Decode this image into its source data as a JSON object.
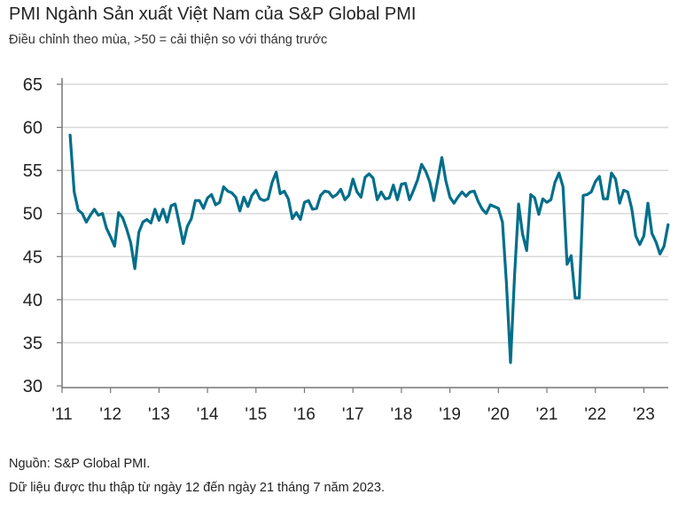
{
  "chart_data": {
    "type": "line",
    "title": "PMI Ngành Sản xuất Việt Nam của S&P Global PMI",
    "subtitle": "Điều chỉnh theo mùa, >50 = cải thiện so với tháng trước",
    "xlabel": "",
    "ylabel": "",
    "ylim": [
      30,
      65
    ],
    "yticks": [
      "65",
      "60",
      "55",
      "50",
      "45",
      "40",
      "35",
      "30"
    ],
    "xticks": [
      "'11",
      "'12",
      "'13",
      "'14",
      "'15",
      "'16",
      "'17",
      "'18",
      "'19",
      "'20",
      "'21",
      "'22",
      "'23"
    ],
    "x_start": "2011-03",
    "x_end": "2023-07",
    "frequency": "monthly",
    "grid": true,
    "line_color": "#006e8a",
    "values": [
      59.1,
      52.5,
      50.4,
      50.0,
      49.0,
      49.8,
      50.5,
      49.8,
      50.0,
      48.3,
      47.3,
      46.2,
      50.1,
      49.5,
      48.2,
      46.6,
      43.6,
      47.8,
      49.0,
      49.3,
      48.9,
      50.5,
      49.2,
      50.5,
      49.0,
      50.9,
      51.1,
      48.9,
      46.5,
      48.5,
      49.4,
      51.5,
      51.5,
      50.6,
      51.8,
      52.2,
      51.0,
      51.3,
      53.1,
      52.6,
      52.4,
      51.9,
      50.3,
      51.9,
      50.8,
      52.1,
      52.7,
      51.7,
      51.5,
      51.7,
      53.6,
      54.8,
      52.3,
      52.6,
      51.7,
      49.4,
      50.1,
      49.3,
      51.3,
      51.5,
      50.5,
      50.6,
      52.1,
      52.6,
      52.5,
      51.9,
      52.2,
      52.8,
      51.6,
      52.1,
      54.0,
      52.5,
      51.9,
      54.2,
      54.6,
      54.1,
      51.6,
      52.5,
      51.7,
      51.8,
      53.3,
      51.6,
      53.4,
      53.5,
      51.6,
      52.7,
      53.9,
      55.7,
      54.9,
      53.7,
      51.5,
      53.9,
      56.5,
      53.8,
      51.9,
      51.2,
      51.9,
      52.5,
      52.0,
      52.5,
      52.6,
      51.4,
      50.5,
      50.0,
      51.0,
      50.8,
      50.6,
      49.0,
      41.9,
      32.7,
      42.7,
      51.1,
      47.6,
      45.7,
      52.2,
      51.8,
      49.9,
      51.7,
      51.3,
      51.6,
      53.6,
      54.7,
      53.1,
      44.1,
      45.1,
      40.2,
      40.2,
      52.1,
      52.2,
      52.5,
      53.7,
      54.3,
      51.7,
      51.7,
      54.7,
      54.0,
      51.2,
      52.7,
      52.5,
      50.6,
      47.4,
      46.4,
      47.4,
      51.2,
      47.7,
      46.7,
      45.3,
      46.2,
      48.7
    ]
  },
  "footer": {
    "source": "Nguồn: S&P Global PMI.",
    "note": "Dữ liệu được thu thập từ ngày 12 đến ngày 21 tháng 7 năm 2023."
  }
}
